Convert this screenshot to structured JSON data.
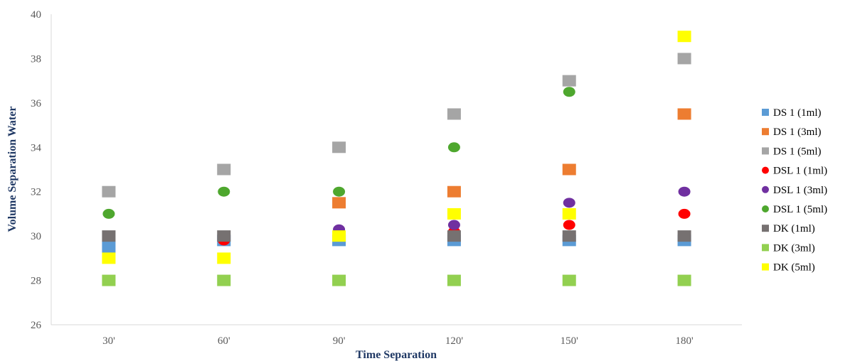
{
  "chart_data": {
    "type": "scatter",
    "title": "",
    "xlabel": "Time Separation",
    "ylabel": "Volume Separation Water",
    "categories": [
      "30'",
      "60'",
      "90'",
      "120'",
      "150'",
      "180'"
    ],
    "ylim": [
      26,
      40
    ],
    "yticks": [
      26,
      28,
      30,
      32,
      34,
      36,
      38,
      40
    ],
    "grid": false,
    "legend": "right",
    "series": [
      {
        "name": "DS 1 (1ml)",
        "marker": "square",
        "color": "#5B9BD5",
        "values": [
          29.5,
          29.8,
          29.8,
          29.8,
          29.8,
          29.8
        ]
      },
      {
        "name": "DS 1 (3ml)",
        "marker": "square",
        "color": "#ED7D31",
        "values": [
          null,
          null,
          31.5,
          32,
          33,
          35.5
        ]
      },
      {
        "name": "DS 1 (5ml)",
        "marker": "square",
        "color": "#A5A5A5",
        "values": [
          32,
          33,
          34,
          35.5,
          37,
          38
        ]
      },
      {
        "name": "DSL 1 (1ml)",
        "marker": "circle",
        "color": "#FF0000",
        "values": [
          null,
          29.8,
          null,
          30.2,
          30.5,
          31
        ]
      },
      {
        "name": "DSL 1 (3ml)",
        "marker": "circle",
        "color": "#7030A0",
        "values": [
          null,
          null,
          30.3,
          30.5,
          31.5,
          32
        ]
      },
      {
        "name": "DSL 1 (5ml)",
        "marker": "circle",
        "color": "#4EA72E",
        "values": [
          31,
          32,
          32,
          34,
          36.5,
          null
        ]
      },
      {
        "name": "DK (1ml)",
        "marker": "square",
        "color": "#767171",
        "values": [
          30,
          30,
          null,
          30,
          30,
          30
        ]
      },
      {
        "name": "DK (3ml)",
        "marker": "square",
        "color": "#92D050",
        "values": [
          28,
          28,
          28,
          28,
          28,
          28
        ]
      },
      {
        "name": "DK (5ml)",
        "marker": "square",
        "color": "#FFFF00",
        "values": [
          29,
          29,
          30,
          31,
          31,
          39
        ]
      }
    ]
  }
}
